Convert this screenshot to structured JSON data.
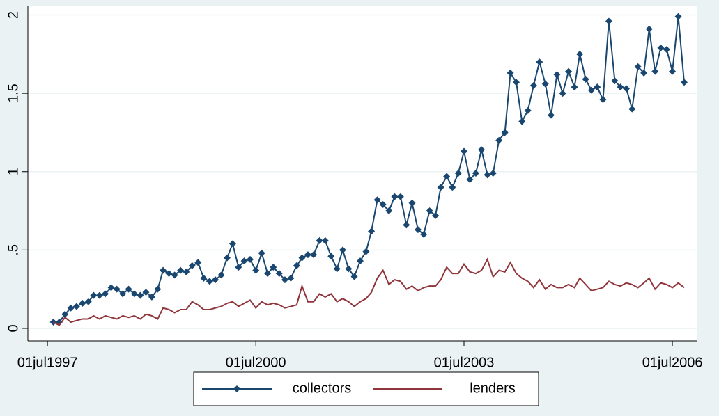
{
  "chart_data": {
    "type": "line",
    "x": [
      "1997-08",
      "1997-09",
      "1997-10",
      "1997-11",
      "1997-12",
      "1998-01",
      "1998-02",
      "1998-03",
      "1998-04",
      "1998-05",
      "1998-06",
      "1998-07",
      "1998-08",
      "1998-09",
      "1998-10",
      "1998-11",
      "1998-12",
      "1999-01",
      "1999-02",
      "1999-03",
      "1999-04",
      "1999-05",
      "1999-06",
      "1999-07",
      "1999-08",
      "1999-09",
      "1999-10",
      "1999-11",
      "1999-12",
      "2000-01",
      "2000-02",
      "2000-03",
      "2000-04",
      "2000-05",
      "2000-06",
      "2000-07",
      "2000-08",
      "2000-09",
      "2000-10",
      "2000-11",
      "2000-12",
      "2001-01",
      "2001-02",
      "2001-03",
      "2001-04",
      "2001-05",
      "2001-06",
      "2001-07",
      "2001-08",
      "2001-09",
      "2001-10",
      "2001-11",
      "2001-12",
      "2002-01",
      "2002-02",
      "2002-03",
      "2002-04",
      "2002-05",
      "2002-06",
      "2002-07",
      "2002-08",
      "2002-09",
      "2002-10",
      "2002-11",
      "2002-12",
      "2003-01",
      "2003-02",
      "2003-03",
      "2003-04",
      "2003-05",
      "2003-06",
      "2003-07",
      "2003-08",
      "2003-09",
      "2003-10",
      "2003-11",
      "2003-12",
      "2004-01",
      "2004-02",
      "2004-03",
      "2004-04",
      "2004-05",
      "2004-06",
      "2004-07",
      "2004-08",
      "2004-09",
      "2004-10",
      "2004-11",
      "2004-12",
      "2005-01",
      "2005-02",
      "2005-03",
      "2005-04",
      "2005-05",
      "2005-06",
      "2005-07",
      "2005-08",
      "2005-09",
      "2005-10",
      "2005-11",
      "2005-12",
      "2006-01",
      "2006-02",
      "2006-03",
      "2006-04",
      "2006-05",
      "2006-06",
      "2006-07",
      "2006-08",
      "2006-09"
    ],
    "series": [
      {
        "name": "collectors",
        "color": "#1a476f",
        "marker": "diamond",
        "values": [
          0.04,
          0.04,
          0.09,
          0.13,
          0.14,
          0.16,
          0.17,
          0.21,
          0.21,
          0.22,
          0.26,
          0.25,
          0.22,
          0.25,
          0.22,
          0.21,
          0.23,
          0.2,
          0.25,
          0.37,
          0.35,
          0.34,
          0.37,
          0.36,
          0.4,
          0.42,
          0.32,
          0.3,
          0.31,
          0.34,
          0.45,
          0.54,
          0.39,
          0.43,
          0.44,
          0.37,
          0.48,
          0.35,
          0.39,
          0.35,
          0.31,
          0.32,
          0.4,
          0.45,
          0.47,
          0.47,
          0.56,
          0.56,
          0.46,
          0.38,
          0.5,
          0.38,
          0.33,
          0.43,
          0.49,
          0.62,
          0.82,
          0.79,
          0.75,
          0.84,
          0.84,
          0.66,
          0.8,
          0.63,
          0.6,
          0.75,
          0.72,
          0.9,
          0.97,
          0.9,
          0.99,
          1.13,
          0.95,
          0.99,
          1.14,
          0.98,
          0.99,
          1.2,
          1.25,
          1.63,
          1.57,
          1.32,
          1.39,
          1.55,
          1.7,
          1.56,
          1.36,
          1.62,
          1.5,
          1.64,
          1.54,
          1.75,
          1.59,
          1.52,
          1.54,
          1.46,
          1.96,
          1.58,
          1.54,
          1.53,
          1.4,
          1.67,
          1.63,
          1.91,
          1.64,
          1.79,
          1.78,
          1.64,
          1.99,
          1.57
        ]
      },
      {
        "name": "lenders",
        "color": "#90353b",
        "values": [
          0.04,
          0.02,
          0.07,
          0.04,
          0.05,
          0.06,
          0.06,
          0.08,
          0.06,
          0.08,
          0.07,
          0.06,
          0.08,
          0.07,
          0.08,
          0.06,
          0.09,
          0.08,
          0.06,
          0.13,
          0.12,
          0.1,
          0.12,
          0.12,
          0.17,
          0.15,
          0.12,
          0.12,
          0.13,
          0.14,
          0.16,
          0.17,
          0.14,
          0.16,
          0.18,
          0.13,
          0.17,
          0.15,
          0.16,
          0.15,
          0.13,
          0.14,
          0.15,
          0.27,
          0.17,
          0.17,
          0.22,
          0.2,
          0.22,
          0.17,
          0.19,
          0.17,
          0.14,
          0.17,
          0.19,
          0.23,
          0.32,
          0.37,
          0.28,
          0.31,
          0.3,
          0.25,
          0.27,
          0.24,
          0.26,
          0.27,
          0.27,
          0.31,
          0.39,
          0.35,
          0.35,
          0.41,
          0.36,
          0.35,
          0.37,
          0.44,
          0.33,
          0.37,
          0.36,
          0.42,
          0.35,
          0.32,
          0.3,
          0.26,
          0.31,
          0.25,
          0.28,
          0.26,
          0.26,
          0.28,
          0.26,
          0.32,
          0.28,
          0.24,
          0.25,
          0.26,
          0.3,
          0.28,
          0.27,
          0.29,
          0.28,
          0.26,
          0.29,
          0.32,
          0.25,
          0.29,
          0.28,
          0.26,
          0.29,
          0.26
        ]
      }
    ],
    "xlim": [
      "1997-03-20",
      "2006-11-06"
    ],
    "xticks": [
      {
        "value": "1997-07-01",
        "label": "01jul1997"
      },
      {
        "value": "2000-07-01",
        "label": "01jul2000"
      },
      {
        "value": "2003-07-01",
        "label": "01jul2003"
      },
      {
        "value": "2006-07-01",
        "label": "01jul2006"
      }
    ],
    "ylim": [
      -0.08,
      2.06
    ],
    "yticks": [
      0,
      {
        "value": 0.5,
        "label": ".5"
      },
      1,
      1.5,
      2
    ],
    "grid": true,
    "legend": "bottom"
  }
}
